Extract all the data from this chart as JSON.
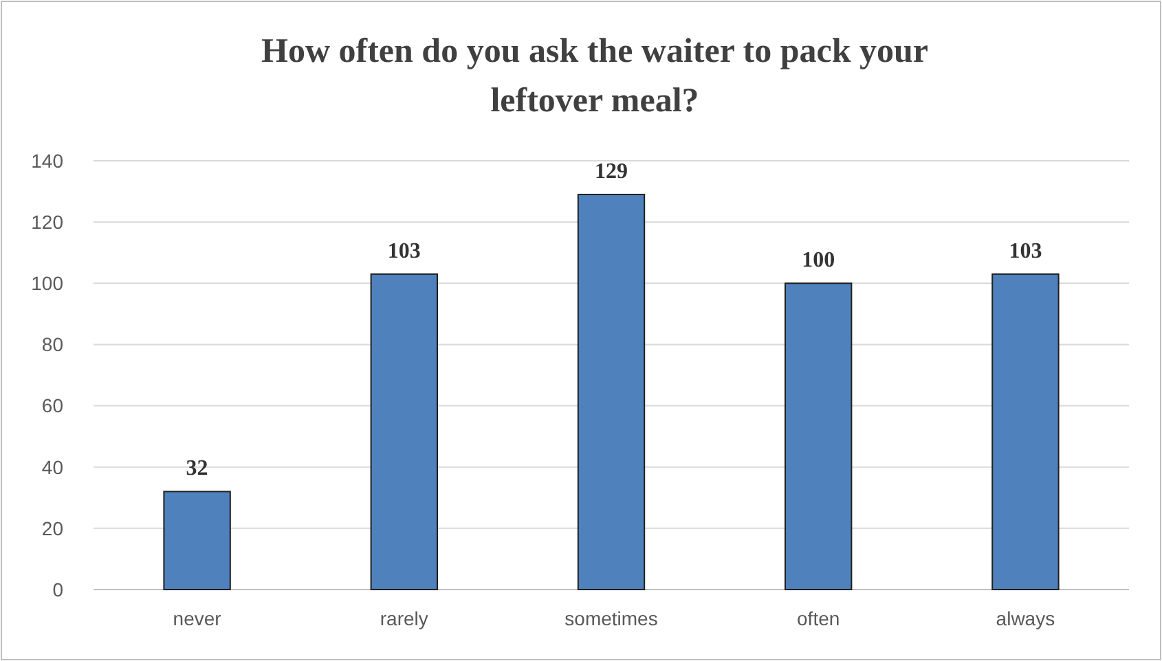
{
  "chart_data": {
    "type": "bar",
    "title": "How often do you ask the waiter to pack your leftover meal?",
    "categories": [
      "never",
      "rarely",
      "sometimes",
      "often",
      "always"
    ],
    "values": [
      32,
      103,
      129,
      100,
      103
    ],
    "color": "#4f81bd",
    "ylim": [
      0,
      140
    ],
    "yticks": [
      0,
      20,
      40,
      60,
      80,
      100,
      120,
      140
    ],
    "grid": "y",
    "data_labels": true
  }
}
